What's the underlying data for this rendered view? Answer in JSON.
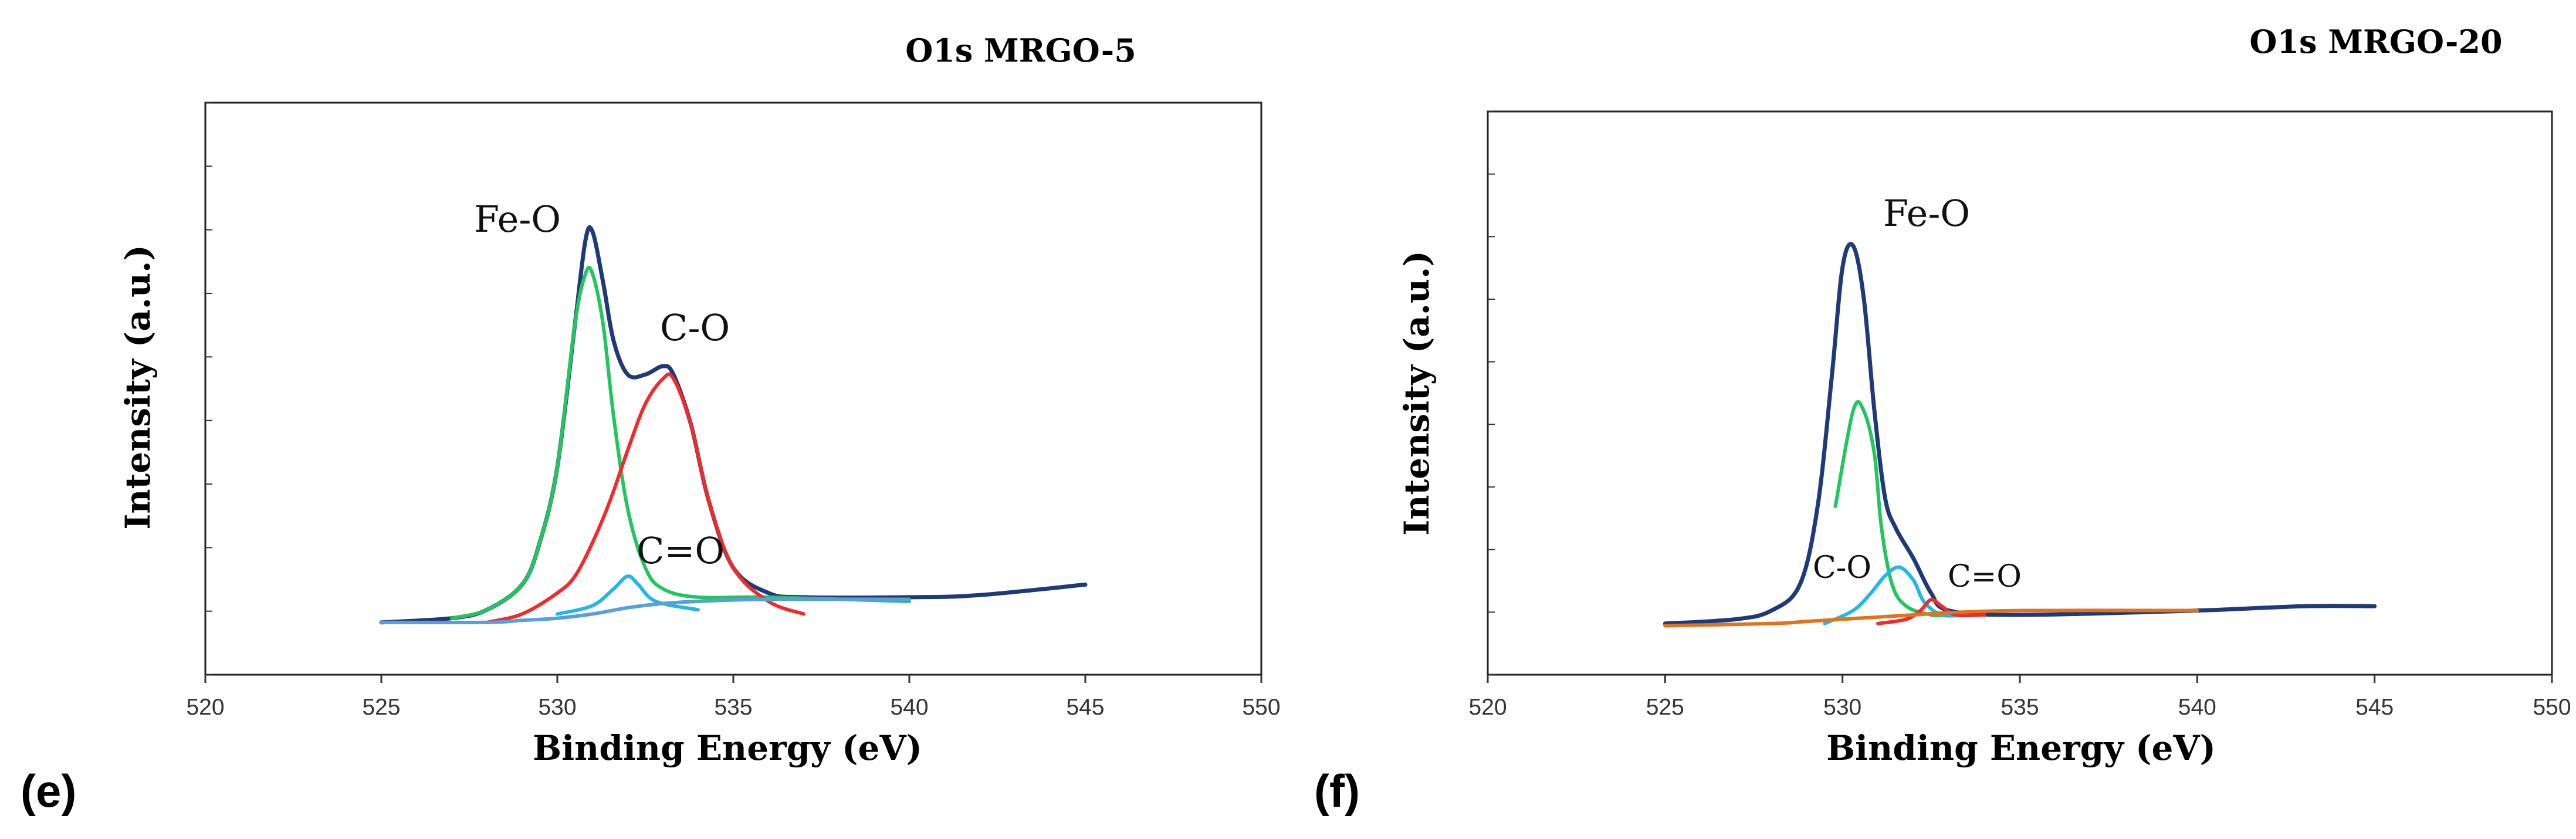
{
  "chart_data": [
    {
      "type": "line",
      "panel_label": "(e)",
      "title": "O1s MRGO-5",
      "xlabel": "Binding Energy (eV)",
      "ylabel": "Intensity (a.u.)",
      "xlim": [
        520,
        550
      ],
      "xticks": [
        520,
        525,
        530,
        535,
        540,
        545,
        550
      ],
      "y_ticks_labeled": false,
      "grid": false,
      "annotations": [
        {
          "text": "Fe-O",
          "x": 531.0
        },
        {
          "text": "C-O",
          "x": 533.2
        },
        {
          "text": "C=O",
          "x": 532.0
        }
      ],
      "series": [
        {
          "color": "#1f3a78",
          "points": [
            [
              525,
              0.01
            ],
            [
              527,
              0.02
            ],
            [
              528,
              0.04
            ],
            [
              529,
              0.1
            ],
            [
              529.5,
              0.2
            ],
            [
              530,
              0.38
            ],
            [
              530.5,
              0.72
            ],
            [
              530.8,
              0.92
            ],
            [
              531,
              0.94
            ],
            [
              531.3,
              0.82
            ],
            [
              531.6,
              0.68
            ],
            [
              532,
              0.6
            ],
            [
              532.5,
              0.6
            ],
            [
              533,
              0.62
            ],
            [
              533.3,
              0.6
            ],
            [
              533.8,
              0.48
            ],
            [
              534.3,
              0.3
            ],
            [
              535,
              0.14
            ],
            [
              536,
              0.08
            ],
            [
              537,
              0.07
            ],
            [
              540,
              0.07
            ],
            [
              542,
              0.075
            ],
            [
              545,
              0.1
            ]
          ]
        },
        {
          "color": "#22c55e",
          "points": [
            [
              527,
              0.02
            ],
            [
              528,
              0.04
            ],
            [
              529,
              0.1
            ],
            [
              529.5,
              0.2
            ],
            [
              530,
              0.38
            ],
            [
              530.5,
              0.72
            ],
            [
              530.8,
              0.84
            ],
            [
              531,
              0.84
            ],
            [
              531.3,
              0.72
            ],
            [
              531.6,
              0.5
            ],
            [
              532,
              0.28
            ],
            [
              532.5,
              0.14
            ],
            [
              533,
              0.09
            ],
            [
              534,
              0.07
            ],
            [
              536,
              0.07
            ],
            [
              540,
              0.06
            ]
          ]
        },
        {
          "color": "#ef2b2b",
          "points": [
            [
              528,
              0.01
            ],
            [
              529,
              0.03
            ],
            [
              530,
              0.08
            ],
            [
              530.5,
              0.12
            ],
            [
              531,
              0.2
            ],
            [
              531.5,
              0.3
            ],
            [
              532,
              0.42
            ],
            [
              532.5,
              0.53
            ],
            [
              533,
              0.59
            ],
            [
              533.3,
              0.59
            ],
            [
              533.8,
              0.48
            ],
            [
              534.3,
              0.3
            ],
            [
              535,
              0.14
            ],
            [
              536,
              0.06
            ],
            [
              537,
              0.03
            ]
          ]
        },
        {
          "color": "#22b7e8",
          "points": [
            [
              530,
              0.03
            ],
            [
              531,
              0.05
            ],
            [
              531.6,
              0.09
            ],
            [
              532,
              0.12
            ],
            [
              532.3,
              0.1
            ],
            [
              532.8,
              0.06
            ],
            [
              534,
              0.04
            ]
          ]
        },
        {
          "color": "#5aa0d8",
          "points": [
            [
              525,
              0.01
            ],
            [
              528,
              0.01
            ],
            [
              529,
              0.015
            ],
            [
              530,
              0.02
            ],
            [
              531,
              0.03
            ],
            [
              532,
              0.045
            ],
            [
              533,
              0.055
            ],
            [
              534,
              0.06
            ],
            [
              536,
              0.065
            ],
            [
              540,
              0.065
            ]
          ]
        }
      ]
    },
    {
      "type": "line",
      "panel_label": "(f)",
      "title": "O1s MRGO-20",
      "xlabel": "Binding Energy (eV)",
      "ylabel": "Intensity (a.u.)",
      "xlim": [
        520,
        550
      ],
      "xticks": [
        520,
        525,
        530,
        535,
        540,
        545,
        550
      ],
      "y_ticks_labeled": false,
      "grid": false,
      "annotations": [
        {
          "text": "Fe-O",
          "x": 530.3
        },
        {
          "text": "C-O",
          "x": 531.5
        },
        {
          "text": "C=O",
          "x": 532.7
        }
      ],
      "series": [
        {
          "color": "#1f3a78",
          "points": [
            [
              525,
              0.03
            ],
            [
              527,
              0.04
            ],
            [
              528,
              0.06
            ],
            [
              528.8,
              0.12
            ],
            [
              529.3,
              0.3
            ],
            [
              529.7,
              0.6
            ],
            [
              530,
              0.85
            ],
            [
              530.3,
              0.9
            ],
            [
              530.6,
              0.78
            ],
            [
              530.9,
              0.52
            ],
            [
              531.2,
              0.32
            ],
            [
              531.5,
              0.25
            ],
            [
              532,
              0.18
            ],
            [
              532.5,
              0.1
            ],
            [
              533,
              0.06
            ],
            [
              535,
              0.05
            ],
            [
              540,
              0.06
            ],
            [
              543,
              0.07
            ],
            [
              545,
              0.07
            ]
          ]
        },
        {
          "color": "#22c55e",
          "points": [
            [
              529.8,
              0.3
            ],
            [
              530.3,
              0.52
            ],
            [
              530.6,
              0.52
            ],
            [
              530.9,
              0.42
            ],
            [
              531.1,
              0.25
            ],
            [
              531.4,
              0.12
            ],
            [
              531.8,
              0.07
            ],
            [
              532.5,
              0.05
            ],
            [
              533,
              0.05
            ]
          ]
        },
        {
          "color": "#22b7e8",
          "points": [
            [
              529.5,
              0.03
            ],
            [
              530.3,
              0.06
            ],
            [
              530.8,
              0.1
            ],
            [
              531.2,
              0.14
            ],
            [
              531.6,
              0.16
            ],
            [
              532,
              0.13
            ],
            [
              532.3,
              0.08
            ],
            [
              532.8,
              0.05
            ],
            [
              533.5,
              0.05
            ]
          ]
        },
        {
          "color": "#ef2b2b",
          "points": [
            [
              531,
              0.03
            ],
            [
              531.8,
              0.04
            ],
            [
              532.2,
              0.06
            ],
            [
              532.5,
              0.085
            ],
            [
              532.8,
              0.07
            ],
            [
              533.2,
              0.05
            ],
            [
              534,
              0.05
            ]
          ]
        },
        {
          "color": "#e2731e",
          "points": [
            [
              525,
              0.025
            ],
            [
              528,
              0.03
            ],
            [
              529,
              0.035
            ],
            [
              530,
              0.04
            ],
            [
              531,
              0.045
            ],
            [
              532,
              0.05
            ],
            [
              533,
              0.055
            ],
            [
              535,
              0.06
            ],
            [
              540,
              0.06
            ]
          ]
        }
      ]
    }
  ]
}
